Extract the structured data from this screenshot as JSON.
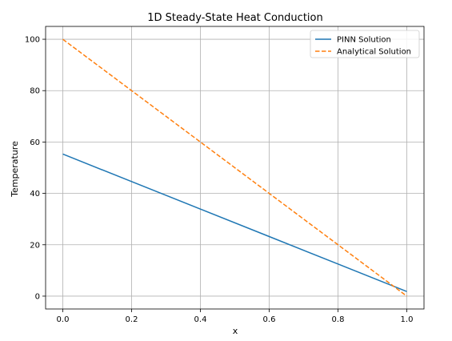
{
  "chart_data": {
    "type": "line",
    "title": "1D Steady-State Heat Conduction",
    "xlabel": "x",
    "ylabel": "Temperature",
    "xlim": [
      -0.05,
      1.05
    ],
    "ylim": [
      -5,
      105
    ],
    "xticks": [
      0.0,
      0.2,
      0.4,
      0.6,
      0.8,
      1.0
    ],
    "xtick_labels": [
      "0.0",
      "0.2",
      "0.4",
      "0.6",
      "0.8",
      "1.0"
    ],
    "yticks": [
      0,
      20,
      40,
      60,
      80,
      100
    ],
    "ytick_labels": [
      "0",
      "20",
      "40",
      "60",
      "80",
      "100"
    ],
    "grid": true,
    "legend_position": "top-right",
    "series": [
      {
        "name": "PINN Solution",
        "style": "solid",
        "color": "#1f77b4",
        "x": [
          0.0,
          0.2,
          0.4,
          0.6,
          0.8,
          1.0
        ],
        "y": [
          55.3,
          44.6,
          33.9,
          23.2,
          12.5,
          1.8
        ]
      },
      {
        "name": "Analytical Solution",
        "style": "dashed",
        "color": "#ff7f0e",
        "x": [
          0.0,
          0.2,
          0.4,
          0.6,
          0.8,
          1.0
        ],
        "y": [
          100,
          80,
          60,
          40,
          20,
          0
        ]
      }
    ]
  }
}
